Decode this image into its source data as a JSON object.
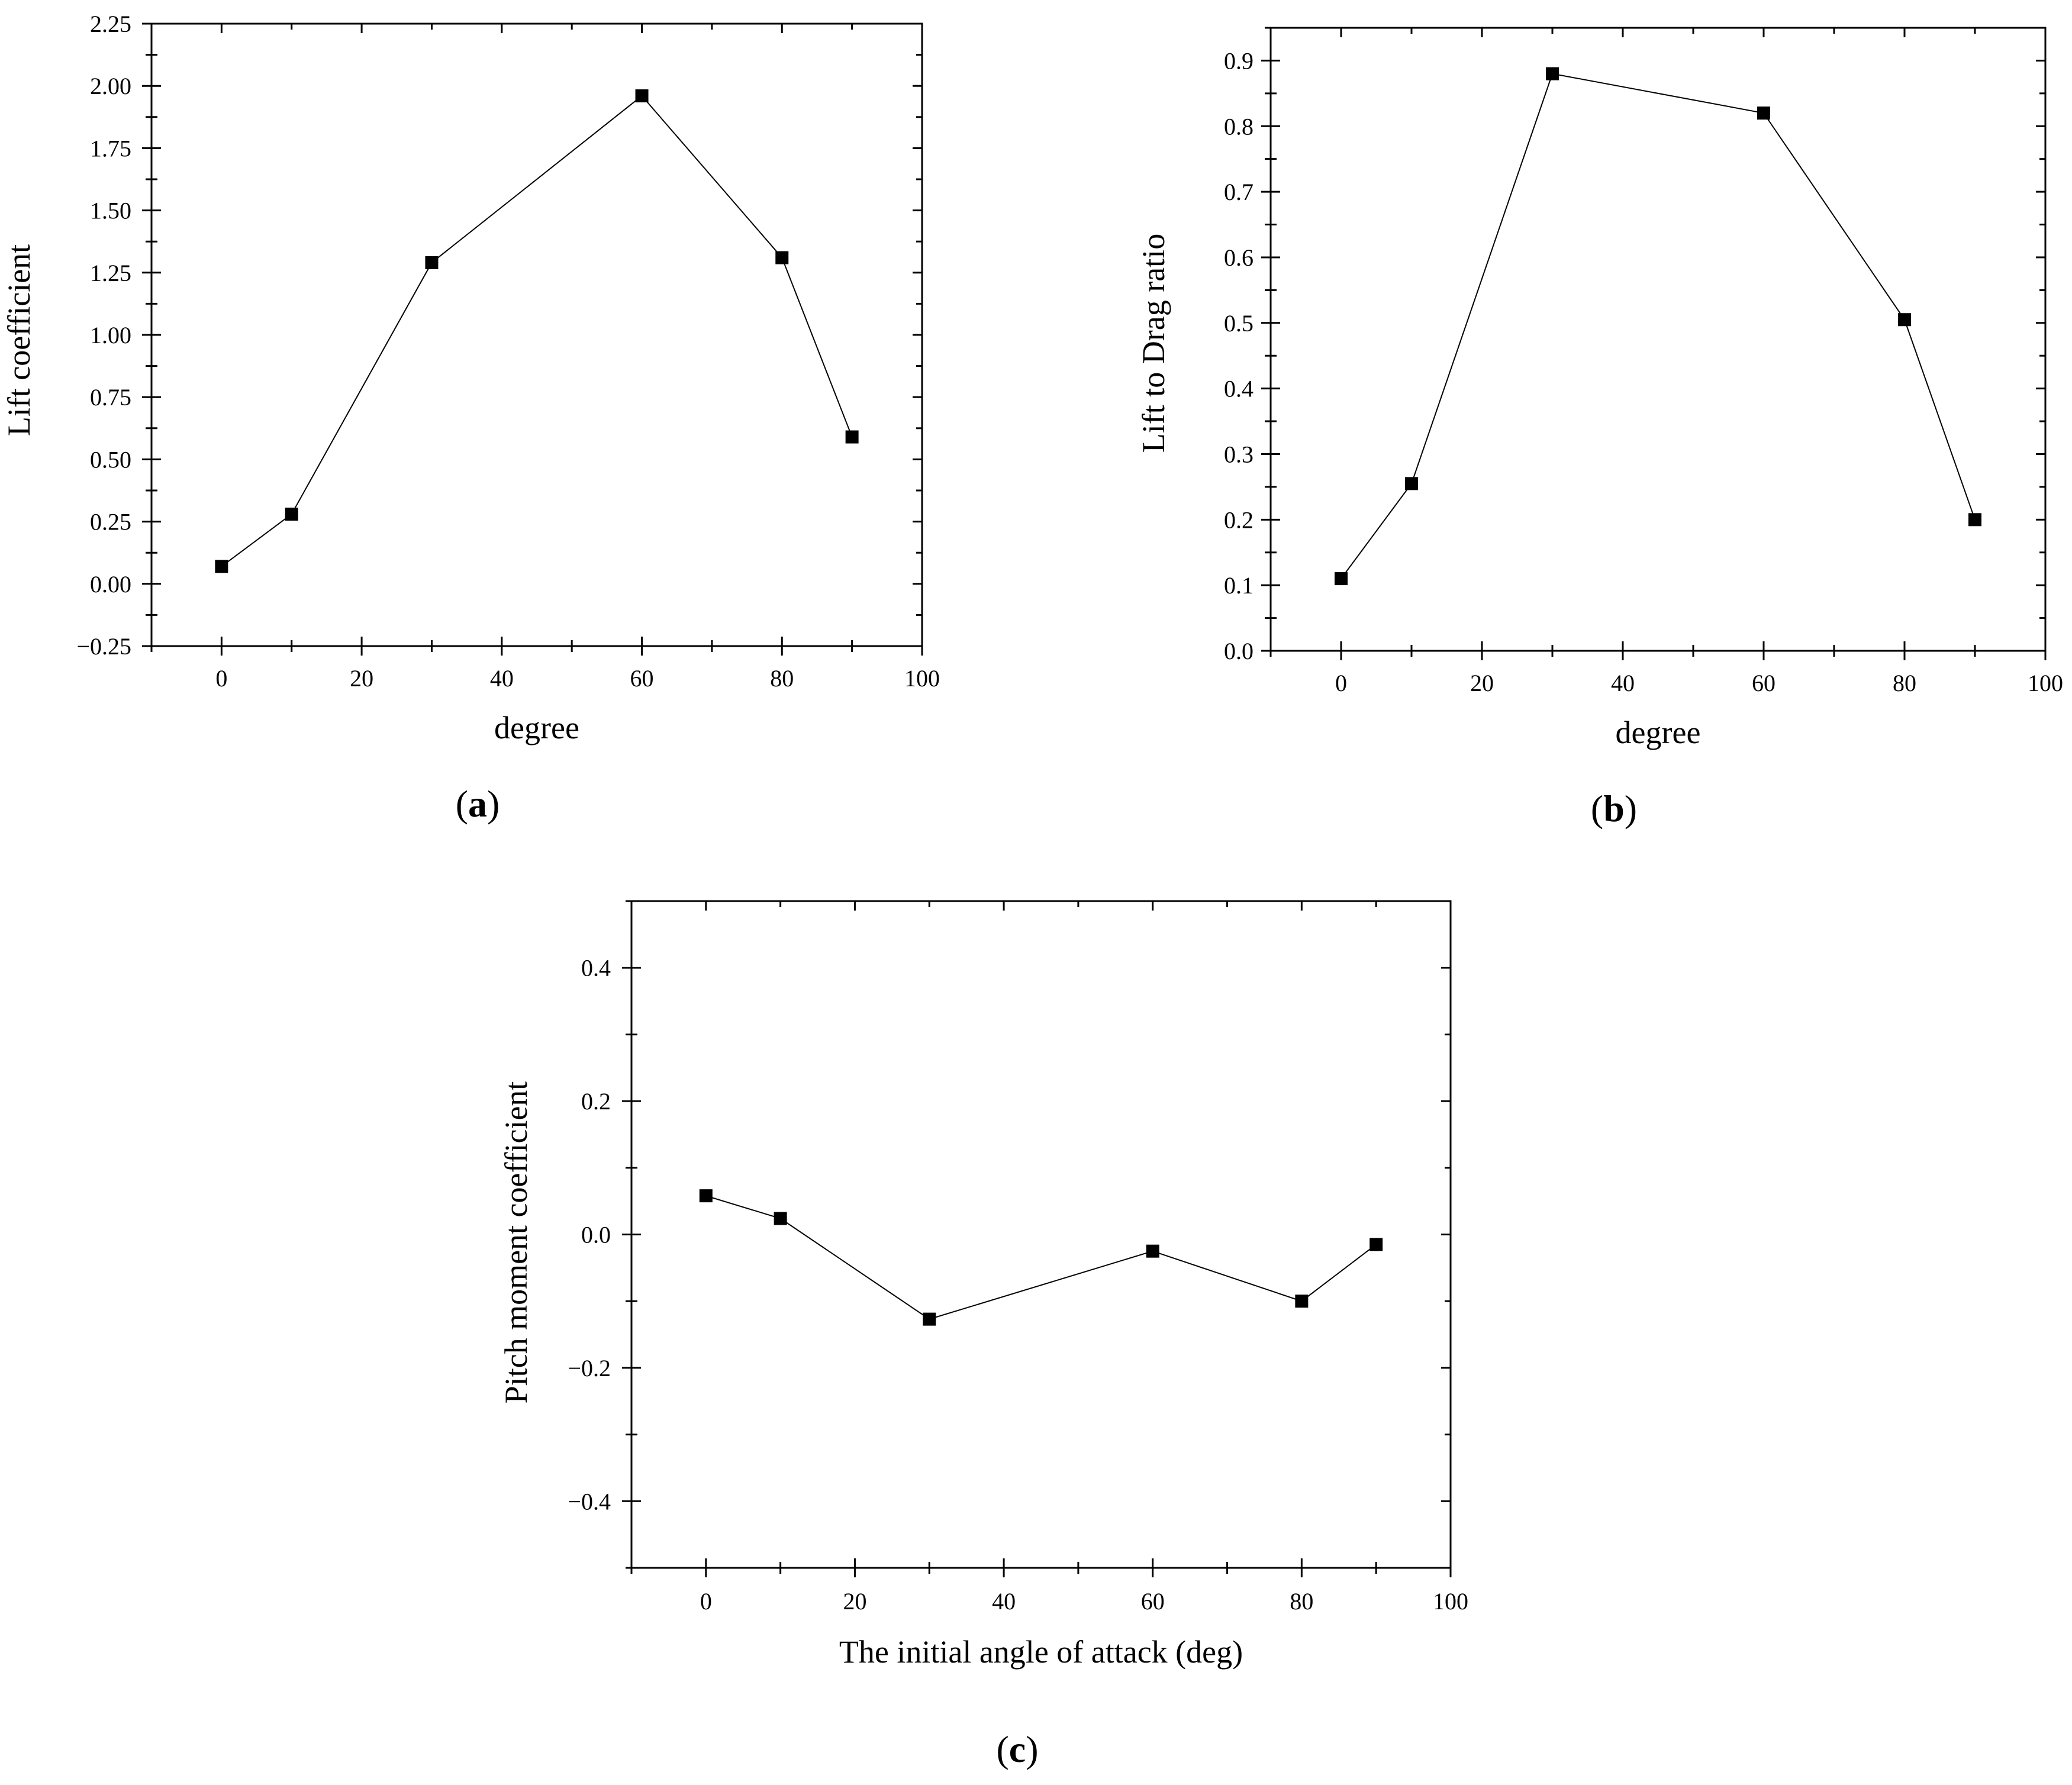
{
  "chart_data": [
    {
      "id": "a",
      "type": "line",
      "caption": {
        "open": "(",
        "letter": "a",
        "close": ")"
      },
      "xlabel": "degree",
      "ylabel": "Lift coefficient",
      "xlim": [
        -10,
        100
      ],
      "ylim": [
        -0.25,
        2.25
      ],
      "xticks": [
        0,
        20,
        40,
        60,
        80,
        100
      ],
      "xtick_labels": [
        "0",
        "20",
        "40",
        "60",
        "80",
        "100"
      ],
      "yticks": [
        -0.25,
        0,
        0.25,
        0.5,
        0.75,
        1.0,
        1.25,
        1.5,
        1.75,
        2.0,
        2.25
      ],
      "ytick_labels": [
        "-0.25",
        "0.00",
        "0.25",
        "0.50",
        "0.75",
        "1.00",
        "1.25",
        "1.50",
        "1.75",
        "2.00",
        "2.25"
      ],
      "minor_x_step": 10,
      "minor_y_step": 0.125,
      "grid": false,
      "marker": "square",
      "x": [
        0,
        10,
        30,
        60,
        80,
        90
      ],
      "y": [
        0.07,
        0.28,
        1.29,
        1.96,
        1.31,
        0.59
      ]
    },
    {
      "id": "b",
      "type": "line",
      "caption": {
        "open": "(",
        "letter": "b",
        "close": ")"
      },
      "xlabel": "degree",
      "ylabel": "Lift to Drag ratio",
      "xlim": [
        -10,
        100
      ],
      "ylim": [
        0,
        0.95
      ],
      "xticks": [
        0,
        20,
        40,
        60,
        80,
        100
      ],
      "xtick_labels": [
        "0",
        "20",
        "40",
        "60",
        "80",
        "100"
      ],
      "yticks": [
        0,
        0.1,
        0.2,
        0.3,
        0.4,
        0.5,
        0.6,
        0.7,
        0.8,
        0.9
      ],
      "ytick_labels": [
        "0.0",
        "0.1",
        "0.2",
        "0.3",
        "0.4",
        "0.5",
        "0.6",
        "0.7",
        "0.8",
        "0.9"
      ],
      "minor_x_step": 10,
      "minor_y_step": 0.05,
      "grid": false,
      "marker": "square",
      "x": [
        0,
        10,
        30,
        60,
        80,
        90
      ],
      "y": [
        0.11,
        0.255,
        0.88,
        0.82,
        0.505,
        0.2
      ]
    },
    {
      "id": "c",
      "type": "line",
      "caption": {
        "open": "(",
        "letter": "c",
        "close": ")"
      },
      "xlabel": "The initial angle of attack (deg)",
      "ylabel": "Pitch moment coefficient",
      "xlim": [
        -10,
        100
      ],
      "ylim": [
        -0.5,
        0.5
      ],
      "xticks": [
        0,
        20,
        40,
        60,
        80,
        100
      ],
      "xtick_labels": [
        "0",
        "20",
        "40",
        "60",
        "80",
        "100"
      ],
      "yticks": [
        -0.4,
        -0.2,
        0,
        0.2,
        0.4
      ],
      "ytick_labels": [
        "-0.4",
        "-0.2",
        "0.0",
        "0.2",
        "0.4"
      ],
      "minor_x_step": 10,
      "minor_y_step": 0.1,
      "grid": false,
      "marker": "square",
      "x": [
        0,
        10,
        30,
        60,
        80,
        90
      ],
      "y": [
        0.058,
        0.024,
        -0.127,
        -0.025,
        -0.1,
        -0.015
      ]
    }
  ]
}
